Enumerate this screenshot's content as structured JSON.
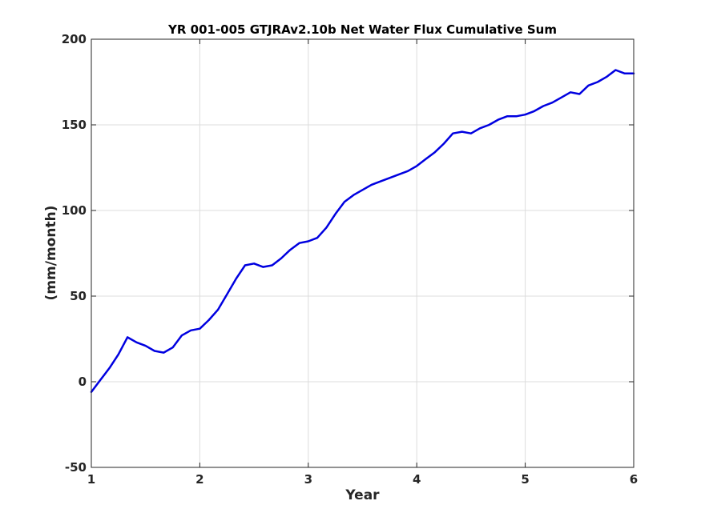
{
  "chart_data": {
    "type": "line",
    "title": "YR 001-005 GTJRAv2.10b Net Water Flux Cumulative Sum",
    "xlabel": "Year",
    "ylabel": "(mm/month)",
    "xlim": [
      1,
      6
    ],
    "ylim": [
      -50,
      200
    ],
    "xticks": [
      1,
      2,
      3,
      4,
      5,
      6
    ],
    "yticks": [
      -50,
      0,
      50,
      100,
      150,
      200
    ],
    "grid": true,
    "line_color": "#0000e0",
    "series": [
      {
        "x": [
          1.0,
          1.083,
          1.167,
          1.25,
          1.333,
          1.417,
          1.5,
          1.583,
          1.667,
          1.75,
          1.833,
          1.917,
          2.0,
          2.083,
          2.167,
          2.25,
          2.333,
          2.417,
          2.5,
          2.583,
          2.667,
          2.75,
          2.833,
          2.917,
          3.0,
          3.083,
          3.167,
          3.25,
          3.333,
          3.417,
          3.5,
          3.583,
          3.667,
          3.75,
          3.833,
          3.917,
          4.0,
          4.083,
          4.167,
          4.25,
          4.333,
          4.417,
          4.5,
          4.583,
          4.667,
          4.75,
          4.833,
          4.917,
          5.0,
          5.083,
          5.167,
          5.25,
          5.333,
          5.417,
          5.5,
          5.583,
          5.667,
          5.75,
          5.833,
          5.917,
          6.0
        ],
        "y": [
          -6,
          1,
          8,
          16,
          26,
          23,
          21,
          18,
          17,
          20,
          27,
          30,
          31,
          36,
          42,
          51,
          60,
          68,
          69,
          67,
          68,
          72,
          77,
          81,
          82,
          84,
          90,
          98,
          105,
          109,
          112,
          115,
          117,
          119,
          121,
          123,
          126,
          130,
          134,
          139,
          145,
          146,
          145,
          148,
          150,
          153,
          155,
          155,
          156,
          158,
          161,
          163,
          166,
          169,
          168,
          173,
          175,
          178,
          182,
          180,
          180
        ]
      }
    ]
  }
}
